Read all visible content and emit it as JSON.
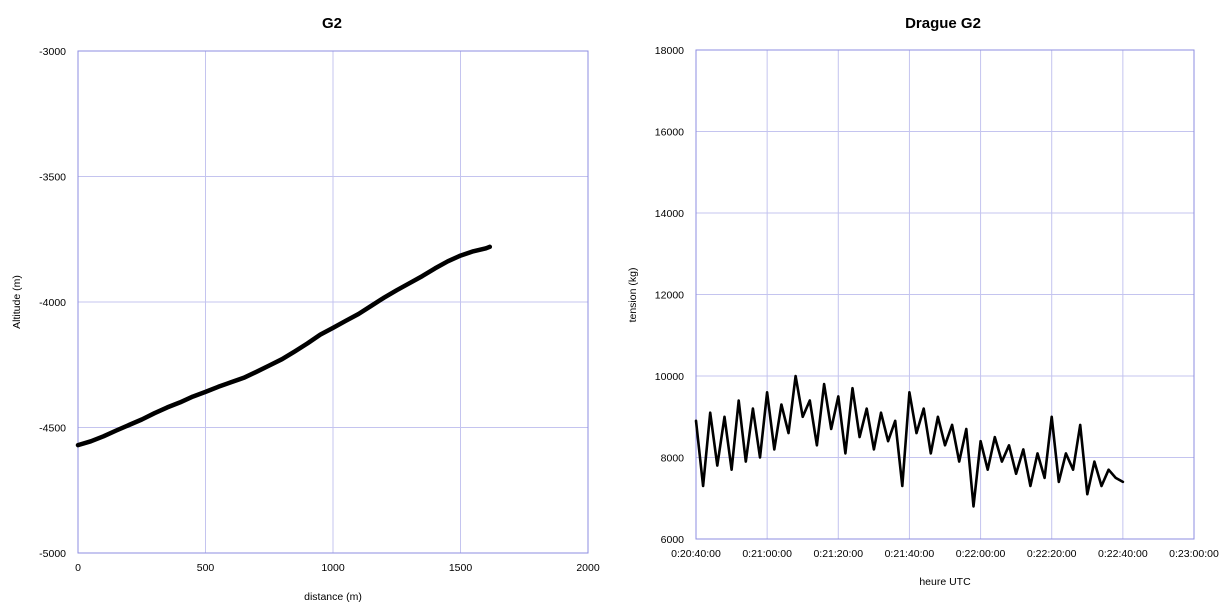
{
  "chart_data": [
    {
      "type": "line",
      "title": "G2",
      "xlabel": "distance (m)",
      "ylabel": "Altitude (m)",
      "xlim": [
        0,
        2000
      ],
      "ylim": [
        -5000,
        -3000
      ],
      "x_ticks": [
        0,
        500,
        1000,
        1500,
        2000
      ],
      "x_tick_labels": [
        "0",
        "500",
        "1000",
        "1500",
        "2000"
      ],
      "y_ticks": [
        -5000,
        -4500,
        -4000,
        -3500,
        -3000
      ],
      "y_tick_labels": [
        "-5000",
        "-4500",
        "-4000",
        "-3500",
        "-3000"
      ],
      "grid": true,
      "color": "#000000",
      "series": [
        {
          "x": [
            0,
            50,
            100,
            150,
            200,
            250,
            300,
            350,
            400,
            450,
            500,
            550,
            600,
            650,
            700,
            750,
            800,
            850,
            900,
            950,
            1000,
            1050,
            1100,
            1150,
            1200,
            1250,
            1300,
            1350,
            1400,
            1450,
            1500,
            1550,
            1600,
            1615
          ],
          "y": [
            -4570,
            -4555,
            -4535,
            -4512,
            -4490,
            -4468,
            -4443,
            -4420,
            -4400,
            -4377,
            -4358,
            -4338,
            -4320,
            -4302,
            -4278,
            -4253,
            -4228,
            -4197,
            -4165,
            -4130,
            -4103,
            -4075,
            -4048,
            -4015,
            -3983,
            -3953,
            -3925,
            -3897,
            -3866,
            -3838,
            -3815,
            -3798,
            -3786,
            -3780
          ]
        }
      ]
    },
    {
      "type": "line",
      "title": "Drague G2",
      "xlabel": "heure UTC",
      "ylabel": "tension (kg)",
      "xlim": [
        "0:20:40:00",
        "0:23:00:00"
      ],
      "ylim": [
        6000,
        18000
      ],
      "x_ticks": [
        "0:20:40:00",
        "0:21:00:00",
        "0:21:20:00",
        "0:21:40:00",
        "0:22:00:00",
        "0:22:20:00",
        "0:22:40:00",
        "0:23:00:00"
      ],
      "y_ticks": [
        6000,
        8000,
        10000,
        12000,
        14000,
        16000,
        18000
      ],
      "y_tick_labels": [
        "6000",
        "8000",
        "10000",
        "12000",
        "14000",
        "16000",
        "18000"
      ],
      "grid": true,
      "color": "#000000",
      "series": [
        {
          "x": [
            "0:20:40:00",
            "0:20:42:00",
            "0:20:44:00",
            "0:20:46:00",
            "0:20:48:00",
            "0:20:50:00",
            "0:20:52:00",
            "0:20:54:00",
            "0:20:56:00",
            "0:20:58:00",
            "0:21:00:00",
            "0:21:02:00",
            "0:21:04:00",
            "0:21:06:00",
            "0:21:08:00",
            "0:21:10:00",
            "0:21:12:00",
            "0:21:14:00",
            "0:21:16:00",
            "0:21:18:00",
            "0:21:20:00",
            "0:21:22:00",
            "0:21:24:00",
            "0:21:26:00",
            "0:21:28:00",
            "0:21:30:00",
            "0:21:32:00",
            "0:21:34:00",
            "0:21:36:00",
            "0:21:38:00",
            "0:21:40:00",
            "0:21:42:00",
            "0:21:44:00",
            "0:21:46:00",
            "0:21:48:00",
            "0:21:50:00",
            "0:21:52:00",
            "0:21:54:00",
            "0:21:56:00",
            "0:21:58:00",
            "0:22:00:00",
            "0:22:02:00",
            "0:22:04:00",
            "0:22:06:00",
            "0:22:08:00",
            "0:22:10:00",
            "0:22:12:00",
            "0:22:14:00",
            "0:22:16:00",
            "0:22:18:00",
            "0:22:20:00",
            "0:22:22:00",
            "0:22:24:00",
            "0:22:26:00",
            "0:22:28:00",
            "0:22:30:00",
            "0:22:32:00",
            "0:22:34:00",
            "0:22:36:00",
            "0:22:38:00",
            "0:22:40:00"
          ],
          "y": [
            8900,
            7300,
            9100,
            7800,
            9000,
            7700,
            9400,
            7900,
            9200,
            8000,
            9600,
            8200,
            9300,
            8600,
            10000,
            9000,
            9400,
            8300,
            9800,
            8700,
            9500,
            8100,
            9700,
            8500,
            9200,
            8200,
            9100,
            8400,
            8900,
            7300,
            9600,
            8600,
            9200,
            8100,
            9000,
            8300,
            8800,
            7900,
            8700,
            6800,
            8400,
            7700,
            8500,
            7900,
            8300,
            7600,
            8200,
            7300,
            8100,
            7500,
            9000,
            7400,
            8100,
            7700,
            8800,
            7100,
            7900,
            7300,
            7700,
            7500,
            7400
          ]
        }
      ]
    }
  ]
}
